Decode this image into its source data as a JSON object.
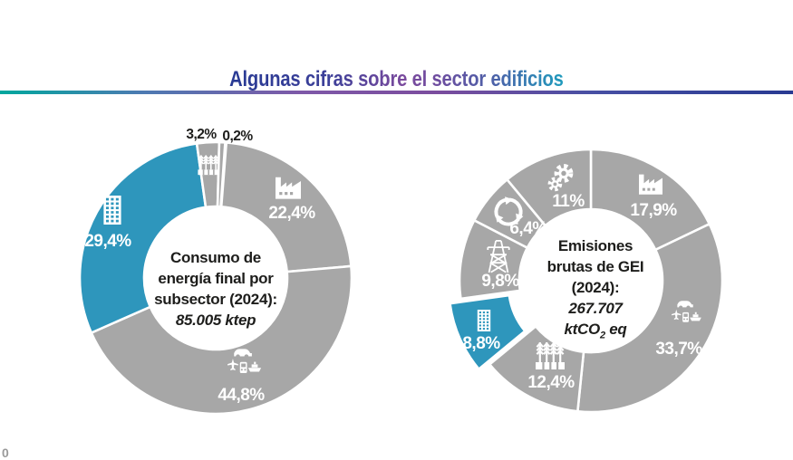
{
  "header": {
    "title": "Algunas cifras sobre el sector edificios"
  },
  "page": {
    "bottom_left_marker": "0"
  },
  "colors": {
    "accent_blue": "#2e96bc",
    "segment_gray": "#a7a7a7",
    "title_gradient": [
      "#283a94",
      "#7a4a9d",
      "#1e9bbd"
    ],
    "rule_gradient": [
      "#00a79d",
      "#7e58a8",
      "#283a92"
    ]
  },
  "chart_data": [
    {
      "type": "pie",
      "variant": "donut",
      "center_title_lines": [
        "Consumo de",
        "energía final por",
        "subsector (2024):"
      ],
      "center_value": "85.005 ktep",
      "segments": [
        {
          "value_label": "22,4%",
          "pct": 22.4,
          "icon": "factory-icon",
          "color": "#a7a7a7",
          "label_color": "#ffffff"
        },
        {
          "value_label": "44,8%",
          "pct": 44.8,
          "icon": "transport-icon",
          "color": "#a7a7a7",
          "label_color": "#ffffff"
        },
        {
          "value_label": "29,4%",
          "pct": 29.4,
          "icon": "building-icon",
          "color": "#2e96bc",
          "label_color": "#ffffff"
        },
        {
          "value_label": "3,2%",
          "pct": 3.2,
          "icon": "wheat-icon",
          "color": "#a7a7a7",
          "label_color": "#1d1d1b"
        },
        {
          "value_label": "0,2%",
          "pct": 0.2,
          "icon": "none",
          "color": "#a7a7a7",
          "label_color": "#1d1d1b"
        }
      ]
    },
    {
      "type": "pie",
      "variant": "donut",
      "center_title_lines": [
        "Emisiones",
        "brutas de GEI",
        "(2024):"
      ],
      "center_value": "267.707",
      "center_unit_prefix": "ktCO",
      "center_unit_sub": "2",
      "center_unit_suffix": " eq",
      "segments": [
        {
          "value_label": "17,9%",
          "pct": 17.9,
          "icon": "factory-icon",
          "color": "#a7a7a7",
          "label_color": "#ffffff"
        },
        {
          "value_label": "33,7%",
          "pct": 33.7,
          "icon": "transport-icon",
          "color": "#a7a7a7",
          "label_color": "#ffffff"
        },
        {
          "value_label": "12,4%",
          "pct": 12.4,
          "icon": "wheat-icon",
          "color": "#a7a7a7",
          "label_color": "#ffffff"
        },
        {
          "value_label": "8,8%",
          "pct": 8.8,
          "icon": "building-icon",
          "color": "#2e96bc",
          "label_color": "#ffffff",
          "exploded": true
        },
        {
          "value_label": "9,8%",
          "pct": 9.8,
          "icon": "pylon-icon",
          "color": "#a7a7a7",
          "label_color": "#ffffff"
        },
        {
          "value_label": "6,4%",
          "pct": 6.4,
          "icon": "recycle-icon",
          "color": "#a7a7a7",
          "label_color": "#ffffff"
        },
        {
          "value_label": "11%",
          "pct": 11.0,
          "icon": "gears-icon",
          "color": "#a7a7a7",
          "label_color": "#ffffff"
        }
      ]
    }
  ]
}
